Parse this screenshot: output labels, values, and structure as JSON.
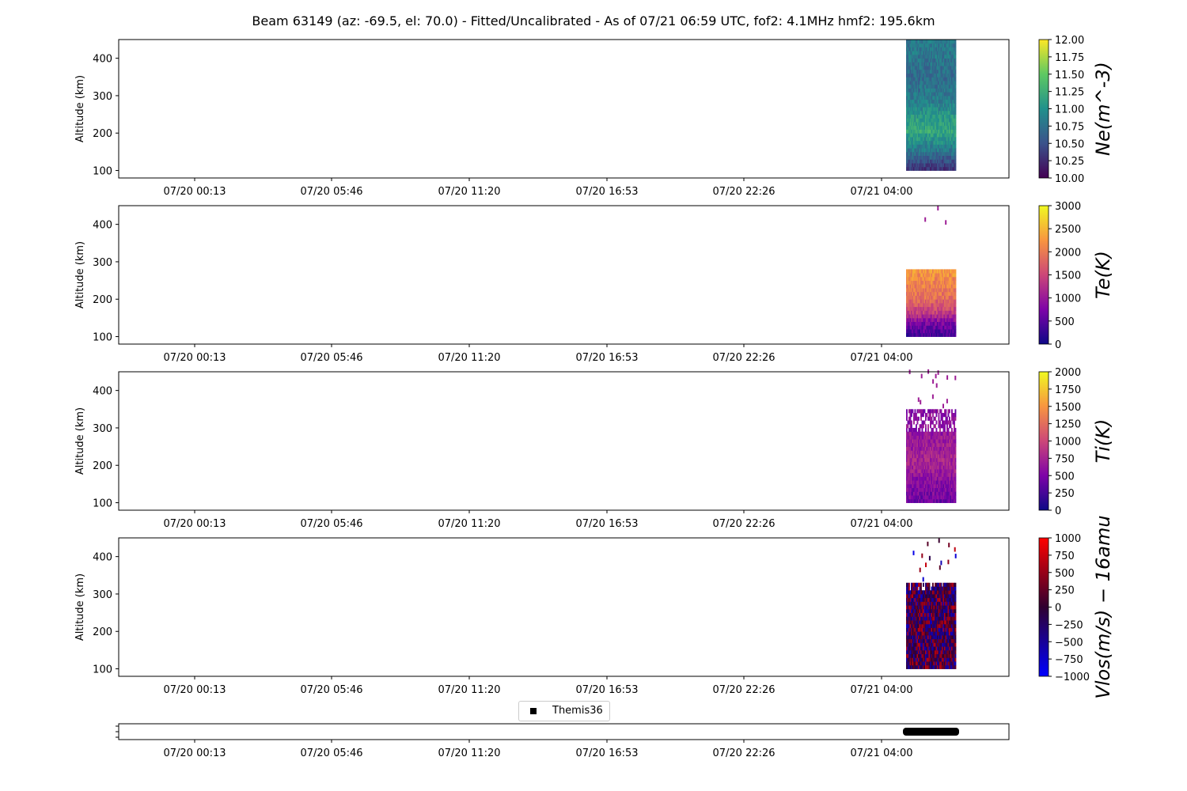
{
  "title": "Beam 63149 (az: -69.5, el: 70.0) - Fitted/Uncalibrated - As of 07/21 06:59 UTC, fof2: 4.1MHz  hmf2: 195.6km",
  "chart_data": [
    {
      "type": "heatmap",
      "panel": "ne",
      "ylabel": "Altitude (km)",
      "yticks": [
        100,
        200,
        300,
        400
      ],
      "ylim": [
        80,
        450
      ],
      "x_tick_labels": [
        "07/20 00:13",
        "07/20 05:46",
        "07/20 11:20",
        "07/20 16:53",
        "07/20 22:26",
        "07/21 04:00"
      ],
      "data_time_range": [
        "07/21 04:55",
        "07/21 06:59"
      ],
      "data_alt_range": [
        100,
        450
      ],
      "colormap": "viridis",
      "colorbar_label": "Ne(m^-3)",
      "colorbar_ticks": [
        "12.00",
        "11.75",
        "11.50",
        "11.25",
        "11.00",
        "10.75",
        "10.50",
        "10.25",
        "10.00"
      ],
      "clim": [
        10,
        12
      ],
      "profile_by_altitude": [
        [
          100,
          10.3
        ],
        [
          150,
          10.8
        ],
        [
          200,
          11.2
        ],
        [
          250,
          11.0
        ],
        [
          300,
          10.8
        ],
        [
          350,
          10.7
        ],
        [
          400,
          10.8
        ],
        [
          450,
          10.8
        ]
      ]
    },
    {
      "type": "heatmap",
      "panel": "te",
      "ylabel": "Altitude (km)",
      "yticks": [
        100,
        200,
        300,
        400
      ],
      "ylim": [
        80,
        450
      ],
      "x_tick_labels": [
        "07/20 00:13",
        "07/20 05:46",
        "07/20 11:20",
        "07/20 16:53",
        "07/20 22:26",
        "07/21 04:00"
      ],
      "data_time_range": [
        "07/21 04:55",
        "07/21 06:59"
      ],
      "data_alt_range": [
        100,
        280
      ],
      "colormap": "plasma",
      "colorbar_label": "Te(K)",
      "colorbar_ticks": [
        "3000",
        "2500",
        "2000",
        "1500",
        "1000",
        "500",
        "0"
      ],
      "clim": [
        0,
        3000
      ],
      "profile_by_altitude": [
        [
          100,
          400
        ],
        [
          130,
          700
        ],
        [
          160,
          1400
        ],
        [
          200,
          1900
        ],
        [
          240,
          2100
        ],
        [
          280,
          2300
        ]
      ]
    },
    {
      "type": "heatmap",
      "panel": "ti",
      "ylabel": "Altitude (km)",
      "yticks": [
        100,
        200,
        300,
        400
      ],
      "ylim": [
        80,
        450
      ],
      "x_tick_labels": [
        "07/20 00:13",
        "07/20 05:46",
        "07/20 11:20",
        "07/20 16:53",
        "07/20 22:26",
        "07/21 04:00"
      ],
      "data_time_range": [
        "07/21 04:55",
        "07/21 06:59"
      ],
      "data_alt_range": [
        100,
        350
      ],
      "colormap": "plasma",
      "colorbar_label": "Ti(K)",
      "colorbar_ticks": [
        "2000",
        "1750",
        "1500",
        "1250",
        "1000",
        "750",
        "500",
        "250",
        "0"
      ],
      "clim": [
        0,
        2000
      ],
      "profile_by_altitude": [
        [
          100,
          450
        ],
        [
          150,
          550
        ],
        [
          200,
          750
        ],
        [
          250,
          700
        ],
        [
          300,
          600
        ],
        [
          350,
          550
        ]
      ]
    },
    {
      "type": "heatmap",
      "panel": "vlos",
      "ylabel": "Altitude (km)",
      "yticks": [
        100,
        200,
        300,
        400
      ],
      "ylim": [
        80,
        450
      ],
      "x_tick_labels": [
        "07/20 00:13",
        "07/20 05:46",
        "07/20 11:20",
        "07/20 16:53",
        "07/20 22:26",
        "07/21 04:00"
      ],
      "data_time_range": [
        "07/21 04:55",
        "07/21 06:59"
      ],
      "data_alt_range": [
        100,
        330
      ],
      "colormap": "bwr",
      "colorbar_label": "Vlos(m/s) − 16amu",
      "colorbar_ticks": [
        "1000",
        "750",
        "500",
        "250",
        "0",
        "−250",
        "−500",
        "−750",
        "−1000"
      ],
      "clim": [
        -1000,
        1000
      ],
      "profile_by_altitude": [
        [
          100,
          0
        ],
        [
          200,
          0
        ],
        [
          330,
          0
        ]
      ]
    },
    {
      "type": "scatter",
      "panel": "themis",
      "series": [
        {
          "name": "Themis36",
          "color": "#000000"
        }
      ],
      "x_tick_labels": [
        "07/20 00:13",
        "07/20 05:46",
        "07/20 11:20",
        "07/20 16:53",
        "07/20 22:26",
        "07/21 04:00"
      ],
      "data_time_range": [
        "07/21 04:55",
        "07/21 06:59"
      ],
      "legend_placement": "top-center"
    }
  ]
}
